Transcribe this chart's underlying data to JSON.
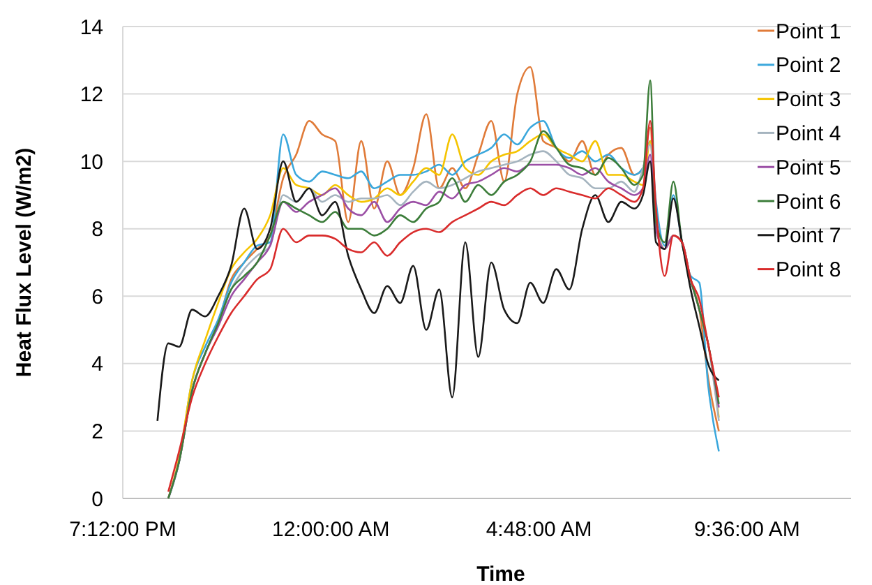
{
  "chart_data": {
    "type": "line",
    "xlabel": "Time",
    "ylabel": "Heat Flux Level (W/m2)",
    "x": [
      "2000-01-01T20:00",
      "2000-01-01T20:15",
      "2000-01-01T20:30",
      "2000-01-01T20:48",
      "2000-01-01T21:06",
      "2000-01-01T21:24",
      "2000-01-01T21:42",
      "2000-01-01T22:00",
      "2000-01-01T22:18",
      "2000-01-01T22:36",
      "2000-01-01T22:54",
      "2000-01-01T23:12",
      "2000-01-01T23:30",
      "2000-01-01T23:48",
      "2000-01-02T00:06",
      "2000-01-02T00:24",
      "2000-01-02T00:42",
      "2000-01-02T01:00",
      "2000-01-02T01:18",
      "2000-01-02T01:36",
      "2000-01-02T01:54",
      "2000-01-02T02:12",
      "2000-01-02T02:30",
      "2000-01-02T02:48",
      "2000-01-02T03:06",
      "2000-01-02T03:24",
      "2000-01-02T03:42",
      "2000-01-02T04:00",
      "2000-01-02T04:18",
      "2000-01-02T04:36",
      "2000-01-02T04:54",
      "2000-01-02T05:12",
      "2000-01-02T05:30",
      "2000-01-02T05:48",
      "2000-01-02T06:06",
      "2000-01-02T06:24",
      "2000-01-02T06:42",
      "2000-01-02T07:00",
      "2000-01-02T07:12",
      "2000-01-02T07:22",
      "2000-01-02T07:30",
      "2000-01-02T07:42",
      "2000-01-02T07:54",
      "2000-01-02T08:06",
      "2000-01-02T08:18",
      "2000-01-02T08:30",
      "2000-01-02T08:42",
      "2000-01-02T08:57"
    ],
    "xlim": [
      "2000-01-01T19:12",
      "2000-01-02T12:00"
    ],
    "xticks": [
      {
        "value": "2000-01-01T19:12",
        "label": "7:12:00 PM"
      },
      {
        "value": "2000-01-02T00:00",
        "label": "12:00:00 AM"
      },
      {
        "value": "2000-01-02T04:48",
        "label": "4:48:00 AM"
      },
      {
        "value": "2000-01-02T09:36",
        "label": "9:36:00 AM"
      }
    ],
    "ylim": [
      0,
      14
    ],
    "yticks": [
      0,
      2,
      4,
      6,
      8,
      10,
      12,
      14
    ],
    "grid": "y",
    "legend": "right",
    "marker": "none",
    "line_style": "solid",
    "series": [
      {
        "name": "Point 1",
        "color": "#e07b39",
        "values": [
          null,
          0,
          1.1,
          3.2,
          4.3,
          5.2,
          6.5,
          7.0,
          7.4,
          7.8,
          9.5,
          10.2,
          11.2,
          10.8,
          10.6,
          8.2,
          10.6,
          8.6,
          10.0,
          9.0,
          9.8,
          11.4,
          9.2,
          9.8,
          9.2,
          10.2,
          11.2,
          9.4,
          12.0,
          12.8,
          10.6,
          10.4,
          10.0,
          10.6,
          9.6,
          10.2,
          10.4,
          9.6,
          9.8,
          11.0,
          8.0,
          7.4,
          7.8,
          7.6,
          6.5,
          5.6,
          3.6,
          2.0
        ]
      },
      {
        "name": "Point 2",
        "color": "#3aa7dc",
        "values": [
          null,
          0,
          1.1,
          3.5,
          4.5,
          5.3,
          6.4,
          7.0,
          7.5,
          7.6,
          10.8,
          9.6,
          9.4,
          9.7,
          9.6,
          9.5,
          9.7,
          9.2,
          9.4,
          9.6,
          9.6,
          9.7,
          9.9,
          9.6,
          10.0,
          10.2,
          10.4,
          10.8,
          10.5,
          11.0,
          11.2,
          10.4,
          10.1,
          10.3,
          10.0,
          10.2,
          9.8,
          9.6,
          9.8,
          10.6,
          8.8,
          7.5,
          9.0,
          7.6,
          6.6,
          6.4,
          3.4,
          1.4
        ]
      },
      {
        "name": "Point 3",
        "color": "#f5c400",
        "values": [
          null,
          0,
          1.2,
          3.5,
          4.7,
          5.8,
          6.8,
          7.3,
          7.7,
          8.4,
          9.8,
          9.3,
          9.2,
          9.0,
          9.3,
          9.0,
          8.8,
          8.9,
          9.2,
          9.0,
          9.4,
          9.8,
          9.6,
          10.8,
          9.8,
          9.6,
          10.0,
          10.2,
          10.3,
          10.6,
          10.8,
          10.4,
          10.2,
          10.0,
          10.6,
          9.6,
          9.6,
          9.4,
          9.3,
          10.6,
          8.3,
          7.4,
          7.8,
          7.6,
          6.5,
          5.6,
          4.6,
          2.4
        ]
      },
      {
        "name": "Point 4",
        "color": "#a5b4bf",
        "values": [
          null,
          0,
          1.1,
          3.2,
          4.3,
          5.2,
          6.2,
          6.8,
          7.2,
          7.5,
          9.0,
          8.8,
          9.2,
          8.8,
          9.0,
          8.8,
          8.9,
          8.9,
          9.0,
          8.7,
          9.1,
          9.4,
          9.2,
          9.3,
          9.5,
          9.7,
          9.8,
          9.9,
          10.0,
          10.2,
          10.3,
          10.0,
          9.6,
          9.5,
          9.2,
          9.2,
          9.4,
          9.1,
          9.8,
          10.5,
          8.2,
          7.4,
          7.8,
          7.6,
          6.5,
          5.6,
          4.6,
          2.3
        ]
      },
      {
        "name": "Point 5",
        "color": "#9b4fa5",
        "values": [
          null,
          0,
          1.1,
          3.2,
          4.3,
          5.1,
          6.0,
          6.5,
          7.0,
          7.5,
          8.8,
          8.5,
          8.8,
          9.0,
          9.2,
          8.6,
          8.4,
          8.8,
          8.2,
          8.6,
          8.8,
          8.7,
          9.1,
          8.9,
          9.3,
          9.4,
          9.6,
          9.8,
          9.7,
          9.9,
          9.9,
          9.9,
          9.8,
          9.6,
          9.8,
          9.4,
          9.2,
          9.0,
          9.2,
          10.2,
          8.0,
          7.4,
          7.8,
          7.6,
          6.5,
          5.6,
          4.6,
          2.7
        ]
      },
      {
        "name": "Point 6",
        "color": "#3c7d3a",
        "values": [
          null,
          0,
          1.1,
          3.2,
          4.3,
          5.2,
          6.2,
          6.6,
          7.0,
          7.8,
          8.8,
          8.6,
          8.4,
          8.2,
          8.5,
          8.0,
          8.0,
          7.8,
          8.0,
          8.4,
          8.2,
          8.6,
          8.8,
          9.5,
          8.8,
          9.3,
          9.0,
          9.4,
          9.6,
          10.0,
          10.9,
          10.4,
          9.9,
          9.8,
          9.6,
          10.1,
          9.8,
          9.3,
          9.6,
          12.4,
          8.2,
          7.6,
          9.4,
          7.6,
          6.5,
          5.6,
          4.6,
          2.8
        ]
      },
      {
        "name": "Point 7",
        "color": "#1a1a1a",
        "values": [
          2.3,
          4.6,
          4.5,
          5.6,
          5.4,
          6.0,
          6.9,
          8.6,
          7.4,
          8.0,
          10.0,
          8.8,
          9.2,
          8.4,
          8.8,
          7.2,
          6.2,
          5.5,
          6.3,
          5.8,
          6.9,
          5.0,
          6.2,
          3.0,
          7.6,
          4.2,
          7.0,
          5.6,
          5.2,
          6.4,
          5.8,
          6.8,
          6.2,
          8.0,
          9.0,
          8.2,
          8.8,
          8.6,
          9.0,
          10.0,
          7.6,
          7.4,
          8.9,
          7.6,
          6.2,
          5.1,
          4.0,
          3.5
        ]
      },
      {
        "name": "Point 8",
        "color": "#d92b2b",
        "values": [
          null,
          0.2,
          1.4,
          3.0,
          4.0,
          4.8,
          5.5,
          6.0,
          6.5,
          6.8,
          8.0,
          7.6,
          7.8,
          7.8,
          7.7,
          7.4,
          7.3,
          7.6,
          7.2,
          7.6,
          7.9,
          8.0,
          7.9,
          8.2,
          8.4,
          8.6,
          8.8,
          8.7,
          9.0,
          9.2,
          9.0,
          9.2,
          9.1,
          9.0,
          8.9,
          9.2,
          9.0,
          8.8,
          9.2,
          11.2,
          8.6,
          6.6,
          7.8,
          7.6,
          6.5,
          5.9,
          4.6,
          3.0
        ]
      }
    ]
  }
}
